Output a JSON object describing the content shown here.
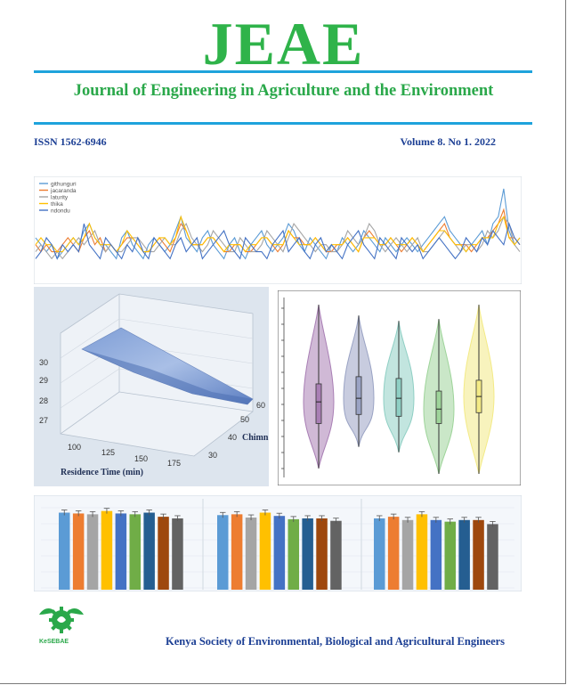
{
  "masthead": "JEAE",
  "journal_title": "Journal of Engineering in Agriculture and the Environment",
  "issn": "ISSN 1562-6946",
  "volume": "Volume 8. No 1. 2022",
  "society": "Kenya Society of Environmental, Biological and Agricultural Engineers",
  "logo_text": "KeSEBAE",
  "colors": {
    "brand_green": "#2fb34a",
    "rule_blue": "#1ea3dc",
    "text_blue": "#1c3f94"
  },
  "chart_data": [
    {
      "type": "line",
      "legend_position": "top-left",
      "series": [
        {
          "name": "githunguri",
          "color": "#5b9bd5",
          "values": [
            6,
            5,
            4,
            5,
            3,
            4,
            5,
            6,
            5,
            7,
            8,
            6,
            5,
            5,
            4,
            3,
            6,
            7,
            5,
            4,
            3,
            5,
            6,
            5,
            4,
            5,
            7,
            9,
            6,
            5,
            4,
            6,
            7,
            5,
            4,
            3,
            5,
            6,
            4,
            3,
            5,
            6,
            7,
            5,
            4,
            5,
            6,
            8,
            7,
            5,
            4,
            6,
            5,
            4,
            3,
            5,
            4,
            6,
            5,
            4,
            5,
            7,
            6,
            5,
            4,
            6,
            5,
            4,
            5,
            6,
            5,
            4,
            5,
            6,
            7,
            8,
            9,
            7,
            6,
            5,
            4,
            5,
            6,
            7,
            5,
            8,
            9,
            13,
            7,
            5,
            6
          ]
        },
        {
          "name": "jacaranda",
          "color": "#ed7d31",
          "values": [
            5,
            4,
            5,
            4,
            4,
            5,
            6,
            5,
            4,
            6,
            7,
            5,
            6,
            4,
            5,
            4,
            5,
            6,
            6,
            5,
            4,
            4,
            5,
            6,
            5,
            4,
            6,
            8,
            7,
            5,
            5,
            5,
            6,
            6,
            5,
            4,
            4,
            5,
            5,
            4,
            4,
            5,
            6,
            6,
            5,
            4,
            5,
            7,
            6,
            6,
            5,
            5,
            6,
            5,
            4,
            4,
            5,
            5,
            6,
            5,
            4,
            6,
            7,
            6,
            5,
            5,
            6,
            5,
            4,
            5,
            6,
            5,
            4,
            5,
            6,
            7,
            8,
            6,
            5,
            5,
            5,
            4,
            5,
            6,
            6,
            7,
            8,
            10,
            6,
            6,
            5
          ]
        },
        {
          "name": "laturity",
          "color": "#a5a5a5",
          "values": [
            4,
            5,
            4,
            3,
            4,
            3,
            4,
            5,
            6,
            5,
            6,
            7,
            5,
            4,
            5,
            4,
            4,
            5,
            6,
            6,
            5,
            4,
            4,
            5,
            6,
            5,
            5,
            7,
            8,
            6,
            5,
            4,
            5,
            7,
            6,
            5,
            4,
            4,
            6,
            5,
            4,
            4,
            5,
            7,
            6,
            5,
            4,
            6,
            8,
            7,
            6,
            5,
            4,
            5,
            5,
            4,
            4,
            5,
            7,
            6,
            5,
            6,
            8,
            7,
            5,
            4,
            5,
            6,
            5,
            4,
            5,
            6,
            4,
            4,
            5,
            6,
            7,
            6,
            5,
            4,
            5,
            5,
            4,
            5,
            7,
            6,
            7,
            9,
            8,
            5,
            4
          ]
        },
        {
          "name": "thika",
          "color": "#ffc000",
          "values": [
            5,
            6,
            5,
            5,
            4,
            4,
            5,
            6,
            5,
            6,
            8,
            6,
            5,
            5,
            5,
            4,
            5,
            7,
            6,
            5,
            4,
            4,
            5,
            6,
            6,
            5,
            6,
            9,
            7,
            5,
            5,
            5,
            6,
            6,
            5,
            4,
            5,
            5,
            5,
            4,
            5,
            5,
            6,
            6,
            5,
            5,
            5,
            7,
            6,
            5,
            5,
            5,
            6,
            5,
            4,
            5,
            5,
            5,
            6,
            5,
            4,
            6,
            6,
            6,
            5,
            5,
            6,
            5,
            5,
            5,
            6,
            5,
            4,
            5,
            6,
            7,
            7,
            6,
            5,
            5,
            4,
            5,
            5,
            6,
            6,
            6,
            8,
            9,
            6,
            5,
            6
          ]
        },
        {
          "name": "ndondu",
          "color": "#4472c4",
          "values": [
            3,
            4,
            6,
            5,
            3,
            5,
            4,
            5,
            4,
            8,
            5,
            4,
            3,
            6,
            5,
            4,
            3,
            5,
            4,
            6,
            4,
            3,
            6,
            5,
            4,
            3,
            5,
            6,
            4,
            5,
            6,
            3,
            4,
            5,
            6,
            7,
            5,
            4,
            3,
            6,
            5,
            4,
            4,
            3,
            5,
            6,
            7,
            4,
            5,
            6,
            4,
            3,
            5,
            6,
            4,
            5,
            4,
            3,
            5,
            6,
            7,
            5,
            4,
            3,
            6,
            5,
            4,
            3,
            6,
            5,
            4,
            5,
            3,
            4,
            5,
            6,
            5,
            4,
            3,
            4,
            6,
            5,
            4,
            6,
            5,
            7,
            6,
            5,
            8,
            6,
            5
          ]
        }
      ]
    },
    {
      "type": "surface",
      "xlabel": "Residence Time (min)",
      "ylabel": "Chimn",
      "x_ticks": [
        "100",
        "125",
        "150",
        "175"
      ],
      "y_ticks": [
        "30",
        "40",
        "50",
        "60"
      ],
      "z_ticks": [
        "27",
        "28",
        "29",
        "30"
      ]
    },
    {
      "type": "violin",
      "series": [
        {
          "color": "#a97fb5",
          "median": 0.42,
          "q1": 0.3,
          "q3": 0.52,
          "min": 0.05,
          "max": 0.96
        },
        {
          "color": "#9aa3c4",
          "median": 0.44,
          "q1": 0.35,
          "q3": 0.56,
          "min": 0.17,
          "max": 0.9
        },
        {
          "color": "#8fcfc4",
          "median": 0.44,
          "q1": 0.34,
          "q3": 0.55,
          "min": 0.14,
          "max": 0.87
        },
        {
          "color": "#9ed49a",
          "median": 0.38,
          "q1": 0.3,
          "q3": 0.48,
          "min": 0.02,
          "max": 0.88
        },
        {
          "color": "#f3ea86",
          "median": 0.45,
          "q1": 0.36,
          "q3": 0.54,
          "min": 0.02,
          "max": 0.96
        }
      ]
    },
    {
      "type": "bar",
      "groups": [
        {
          "values": [
            0.94,
            0.93,
            0.92,
            0.96,
            0.93,
            0.92,
            0.94,
            0.89,
            0.87
          ],
          "colors": [
            "#5b9bd5",
            "#ed7d31",
            "#a5a5a5",
            "#ffc000",
            "#4472c4",
            "#70ad47",
            "#255e91",
            "#9e480e",
            "#636363"
          ]
        },
        {
          "values": [
            0.91,
            0.92,
            0.88,
            0.94,
            0.9,
            0.86,
            0.87,
            0.87,
            0.84
          ],
          "colors": [
            "#5b9bd5",
            "#ed7d31",
            "#a5a5a5",
            "#ffc000",
            "#4472c4",
            "#70ad47",
            "#255e91",
            "#9e480e",
            "#636363"
          ]
        },
        {
          "values": [
            0.87,
            0.89,
            0.85,
            0.92,
            0.85,
            0.83,
            0.85,
            0.85,
            0.8
          ],
          "colors": [
            "#5b9bd5",
            "#ed7d31",
            "#a5a5a5",
            "#ffc000",
            "#4472c4",
            "#70ad47",
            "#255e91",
            "#9e480e",
            "#636363"
          ]
        }
      ]
    }
  ]
}
